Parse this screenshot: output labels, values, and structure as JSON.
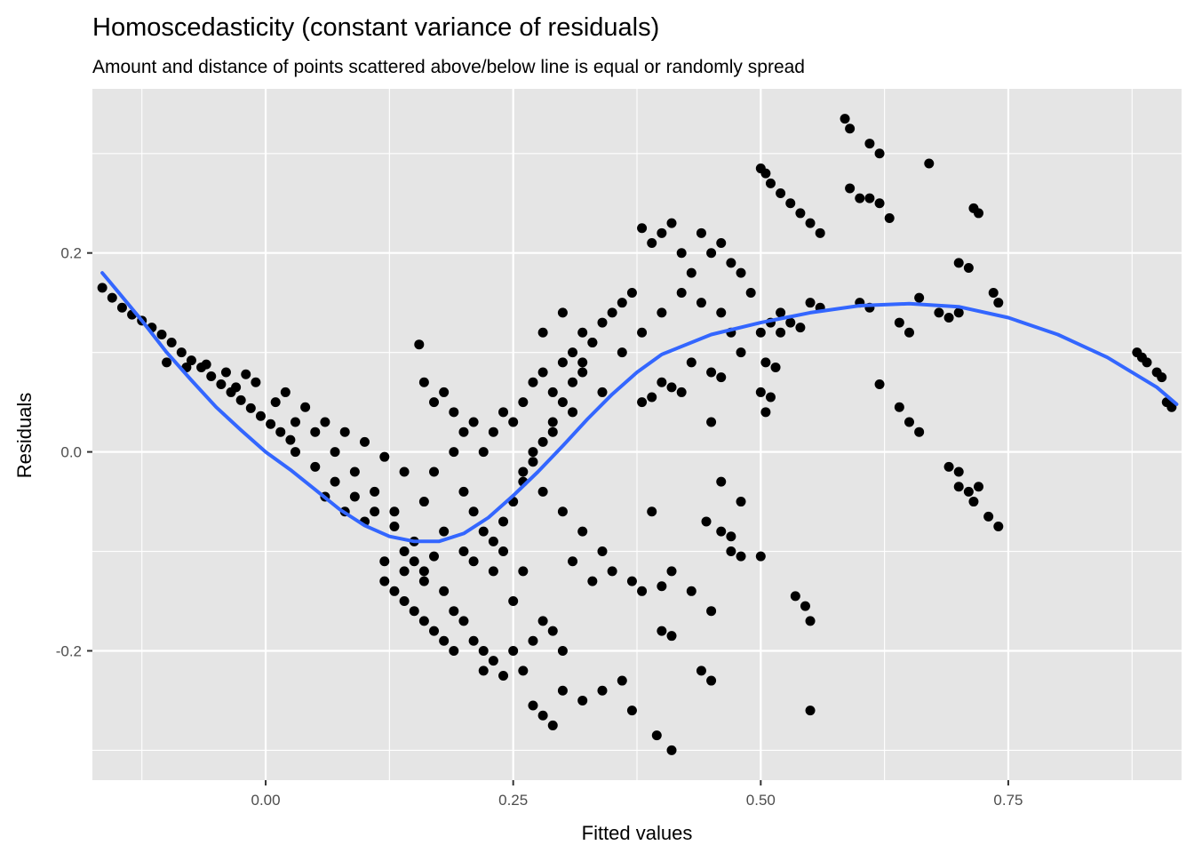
{
  "chart_data": {
    "type": "scatter",
    "title": "Homoscedasticity (constant variance of residuals)",
    "subtitle": "Amount and distance of points scattered above/below line is equal or randomly spread",
    "xlabel": "Fitted values",
    "ylabel": "Residuals",
    "xlim": [
      -0.175,
      0.925
    ],
    "ylim": [
      -0.33,
      0.365
    ],
    "x_ticks": [
      0.0,
      0.25,
      0.5,
      0.75
    ],
    "x_tick_labels": [
      "0.00",
      "0.25",
      "0.50",
      "0.75"
    ],
    "y_ticks": [
      -0.2,
      0.0,
      0.2
    ],
    "y_tick_labels": [
      "-0.2",
      "0.0",
      "0.2"
    ],
    "grid": true,
    "legend": "none",
    "colors": {
      "panel_background": "#e5e5e5",
      "grid_line": "#ffffff",
      "points": "#000000",
      "smooth_line": "#3366ff",
      "tick_text": "#4d4d4d"
    },
    "series": [
      {
        "type": "scatter",
        "points": [
          [
            -0.165,
            0.165
          ],
          [
            -0.155,
            0.155
          ],
          [
            -0.145,
            0.145
          ],
          [
            -0.135,
            0.138
          ],
          [
            -0.125,
            0.132
          ],
          [
            -0.115,
            0.125
          ],
          [
            -0.105,
            0.118
          ],
          [
            -0.095,
            0.11
          ],
          [
            -0.085,
            0.1
          ],
          [
            -0.075,
            0.092
          ],
          [
            -0.065,
            0.085
          ],
          [
            -0.055,
            0.076
          ],
          [
            -0.045,
            0.068
          ],
          [
            -0.035,
            0.06
          ],
          [
            -0.025,
            0.052
          ],
          [
            -0.015,
            0.044
          ],
          [
            -0.005,
            0.036
          ],
          [
            0.005,
            0.028
          ],
          [
            0.015,
            0.02
          ],
          [
            0.025,
            0.012
          ],
          [
            -0.1,
            0.09
          ],
          [
            -0.08,
            0.085
          ],
          [
            -0.06,
            0.088
          ],
          [
            -0.04,
            0.08
          ],
          [
            -0.02,
            0.078
          ],
          [
            -0.01,
            0.07
          ],
          [
            0.02,
            0.06
          ],
          [
            0.04,
            0.045
          ],
          [
            0.06,
            0.03
          ],
          [
            0.08,
            0.02
          ],
          [
            0.1,
            0.01
          ],
          [
            0.12,
            -0.005
          ],
          [
            0.14,
            -0.02
          ],
          [
            0.03,
            0.0
          ],
          [
            0.05,
            -0.015
          ],
          [
            0.07,
            -0.03
          ],
          [
            0.09,
            -0.045
          ],
          [
            0.11,
            -0.06
          ],
          [
            0.13,
            -0.075
          ],
          [
            0.15,
            -0.09
          ],
          [
            0.17,
            -0.105
          ],
          [
            0.12,
            -0.11
          ],
          [
            0.14,
            -0.12
          ],
          [
            0.16,
            -0.13
          ],
          [
            0.18,
            -0.14
          ],
          [
            0.1,
            -0.07
          ],
          [
            0.08,
            -0.06
          ],
          [
            0.06,
            -0.045
          ],
          [
            0.19,
            -0.16
          ],
          [
            0.2,
            -0.17
          ],
          [
            0.21,
            -0.19
          ],
          [
            0.22,
            -0.2
          ],
          [
            0.23,
            -0.21
          ],
          [
            0.22,
            -0.22
          ],
          [
            0.24,
            -0.225
          ],
          [
            0.25,
            -0.2
          ],
          [
            0.26,
            -0.22
          ],
          [
            0.27,
            -0.19
          ],
          [
            0.28,
            -0.17
          ],
          [
            0.29,
            -0.18
          ],
          [
            0.3,
            -0.2
          ],
          [
            0.25,
            -0.15
          ],
          [
            0.23,
            -0.12
          ],
          [
            0.2,
            -0.1
          ],
          [
            0.18,
            -0.08
          ],
          [
            0.16,
            -0.05
          ],
          [
            0.17,
            -0.02
          ],
          [
            0.19,
            0.0
          ],
          [
            0.2,
            -0.04
          ],
          [
            0.21,
            -0.06
          ],
          [
            0.22,
            -0.08
          ],
          [
            0.24,
            -0.1
          ],
          [
            0.26,
            -0.12
          ],
          [
            0.18,
            0.06
          ],
          [
            0.16,
            0.07
          ],
          [
            0.17,
            0.05
          ],
          [
            0.19,
            0.04
          ],
          [
            0.21,
            0.03
          ],
          [
            0.2,
            0.02
          ],
          [
            0.22,
            0.0
          ],
          [
            0.23,
            0.02
          ],
          [
            0.24,
            0.04
          ],
          [
            0.25,
            0.03
          ],
          [
            0.26,
            0.05
          ],
          [
            0.27,
            0.07
          ],
          [
            0.28,
            0.08
          ],
          [
            0.29,
            0.06
          ],
          [
            0.3,
            0.09
          ],
          [
            0.31,
            0.1
          ],
          [
            0.32,
            0.12
          ],
          [
            0.33,
            0.11
          ],
          [
            0.34,
            0.13
          ],
          [
            0.35,
            0.14
          ],
          [
            0.36,
            0.15
          ],
          [
            0.37,
            0.16
          ],
          [
            0.28,
            0.12
          ],
          [
            0.3,
            0.14
          ],
          [
            0.32,
            0.08
          ],
          [
            0.34,
            0.06
          ],
          [
            0.36,
            0.1
          ],
          [
            0.38,
            0.12
          ],
          [
            0.4,
            0.14
          ],
          [
            0.27,
            0.0
          ],
          [
            0.29,
            0.02
          ],
          [
            0.31,
            0.04
          ],
          [
            0.26,
            -0.02
          ],
          [
            0.28,
            -0.04
          ],
          [
            0.3,
            -0.06
          ],
          [
            0.32,
            -0.08
          ],
          [
            0.34,
            -0.1
          ],
          [
            0.35,
            -0.12
          ],
          [
            0.37,
            -0.13
          ],
          [
            0.38,
            -0.14
          ],
          [
            0.31,
            -0.11
          ],
          [
            0.33,
            -0.13
          ],
          [
            0.3,
            -0.24
          ],
          [
            0.32,
            -0.25
          ],
          [
            0.34,
            -0.24
          ],
          [
            0.36,
            -0.23
          ],
          [
            0.37,
            -0.26
          ],
          [
            0.27,
            -0.255
          ],
          [
            0.28,
            -0.265
          ],
          [
            0.29,
            -0.275
          ],
          [
            0.155,
            0.108
          ],
          [
            0.4,
            -0.135
          ],
          [
            0.41,
            -0.12
          ],
          [
            0.39,
            -0.06
          ],
          [
            0.4,
            -0.18
          ],
          [
            0.41,
            -0.185
          ],
          [
            0.395,
            -0.285
          ],
          [
            0.41,
            -0.3
          ],
          [
            0.44,
            -0.22
          ],
          [
            0.45,
            -0.23
          ],
          [
            0.45,
            -0.16
          ],
          [
            0.43,
            -0.14
          ],
          [
            0.38,
            0.225
          ],
          [
            0.39,
            0.21
          ],
          [
            0.4,
            0.22
          ],
          [
            0.41,
            0.23
          ],
          [
            0.42,
            0.2
          ],
          [
            0.43,
            0.18
          ],
          [
            0.44,
            0.22
          ],
          [
            0.45,
            0.2
          ],
          [
            0.46,
            0.21
          ],
          [
            0.47,
            0.19
          ],
          [
            0.48,
            0.18
          ],
          [
            0.49,
            0.16
          ],
          [
            0.42,
            0.16
          ],
          [
            0.44,
            0.15
          ],
          [
            0.46,
            0.14
          ],
          [
            0.47,
            0.12
          ],
          [
            0.48,
            0.1
          ],
          [
            0.43,
            0.09
          ],
          [
            0.45,
            0.08
          ],
          [
            0.46,
            0.075
          ],
          [
            0.4,
            0.07
          ],
          [
            0.41,
            0.065
          ],
          [
            0.42,
            0.06
          ],
          [
            0.38,
            0.05
          ],
          [
            0.39,
            0.055
          ],
          [
            0.445,
            -0.07
          ],
          [
            0.46,
            -0.08
          ],
          [
            0.47,
            -0.085
          ],
          [
            0.47,
            -0.1
          ],
          [
            0.48,
            -0.105
          ],
          [
            0.5,
            -0.105
          ],
          [
            0.46,
            -0.03
          ],
          [
            0.48,
            -0.05
          ],
          [
            0.45,
            0.03
          ],
          [
            0.5,
            0.285
          ],
          [
            0.505,
            0.28
          ],
          [
            0.51,
            0.27
          ],
          [
            0.52,
            0.26
          ],
          [
            0.53,
            0.25
          ],
          [
            0.54,
            0.24
          ],
          [
            0.55,
            0.23
          ],
          [
            0.56,
            0.22
          ],
          [
            0.52,
            0.14
          ],
          [
            0.53,
            0.13
          ],
          [
            0.54,
            0.125
          ],
          [
            0.5,
            0.12
          ],
          [
            0.51,
            0.13
          ],
          [
            0.52,
            0.12
          ],
          [
            0.55,
            0.15
          ],
          [
            0.56,
            0.145
          ],
          [
            0.505,
            0.09
          ],
          [
            0.515,
            0.085
          ],
          [
            0.5,
            0.06
          ],
          [
            0.51,
            0.055
          ],
          [
            0.505,
            0.04
          ],
          [
            0.535,
            -0.145
          ],
          [
            0.545,
            -0.155
          ],
          [
            0.55,
            -0.17
          ],
          [
            0.55,
            -0.26
          ],
          [
            0.585,
            0.335
          ],
          [
            0.59,
            0.325
          ],
          [
            0.61,
            0.31
          ],
          [
            0.62,
            0.3
          ],
          [
            0.59,
            0.265
          ],
          [
            0.6,
            0.255
          ],
          [
            0.61,
            0.255
          ],
          [
            0.62,
            0.25
          ],
          [
            0.63,
            0.235
          ],
          [
            0.6,
            0.15
          ],
          [
            0.61,
            0.145
          ],
          [
            0.64,
            0.13
          ],
          [
            0.65,
            0.12
          ],
          [
            0.66,
            0.155
          ],
          [
            0.67,
            0.29
          ],
          [
            0.62,
            0.068
          ],
          [
            0.64,
            0.045
          ],
          [
            0.65,
            0.03
          ],
          [
            0.66,
            0.02
          ],
          [
            0.68,
            0.14
          ],
          [
            0.69,
            0.135
          ],
          [
            0.7,
            0.14
          ],
          [
            0.7,
            0.19
          ],
          [
            0.71,
            0.185
          ],
          [
            0.715,
            0.245
          ],
          [
            0.72,
            0.24
          ],
          [
            0.735,
            0.16
          ],
          [
            0.74,
            0.15
          ],
          [
            0.69,
            -0.015
          ],
          [
            0.7,
            -0.02
          ],
          [
            0.7,
            -0.035
          ],
          [
            0.71,
            -0.04
          ],
          [
            0.715,
            -0.05
          ],
          [
            0.72,
            -0.035
          ],
          [
            0.73,
            -0.065
          ],
          [
            0.74,
            -0.075
          ],
          [
            0.88,
            0.1
          ],
          [
            0.885,
            0.095
          ],
          [
            0.89,
            0.09
          ],
          [
            0.9,
            0.08
          ],
          [
            0.905,
            0.075
          ],
          [
            0.91,
            0.05
          ],
          [
            0.915,
            0.045
          ],
          [
            0.21,
            -0.11
          ],
          [
            0.23,
            -0.09
          ],
          [
            0.24,
            -0.07
          ],
          [
            0.25,
            -0.05
          ],
          [
            0.26,
            -0.03
          ],
          [
            0.27,
            -0.01
          ],
          [
            0.28,
            0.01
          ],
          [
            0.29,
            0.03
          ],
          [
            0.3,
            0.05
          ],
          [
            0.31,
            0.07
          ],
          [
            0.32,
            0.09
          ],
          [
            0.33,
            0.11
          ],
          [
            0.14,
            -0.1
          ],
          [
            0.15,
            -0.11
          ],
          [
            0.16,
            -0.12
          ],
          [
            0.13,
            -0.06
          ],
          [
            0.11,
            -0.04
          ],
          [
            0.09,
            -0.02
          ],
          [
            0.07,
            0.0
          ],
          [
            0.05,
            0.02
          ],
          [
            0.03,
            0.03
          ],
          [
            0.01,
            0.05
          ],
          [
            -0.03,
            0.065
          ],
          [
            0.12,
            -0.13
          ],
          [
            0.13,
            -0.14
          ],
          [
            0.14,
            -0.15
          ],
          [
            0.15,
            -0.16
          ],
          [
            0.16,
            -0.17
          ],
          [
            0.17,
            -0.18
          ],
          [
            0.18,
            -0.19
          ],
          [
            0.19,
            -0.2
          ]
        ]
      },
      {
        "type": "line",
        "points": [
          [
            -0.165,
            0.18
          ],
          [
            -0.15,
            0.162
          ],
          [
            -0.125,
            0.132
          ],
          [
            -0.1,
            0.1
          ],
          [
            -0.075,
            0.072
          ],
          [
            -0.05,
            0.045
          ],
          [
            -0.025,
            0.022
          ],
          [
            0.0,
            0.0
          ],
          [
            0.025,
            -0.018
          ],
          [
            0.05,
            -0.038
          ],
          [
            0.075,
            -0.058
          ],
          [
            0.1,
            -0.074
          ],
          [
            0.125,
            -0.085
          ],
          [
            0.15,
            -0.09
          ],
          [
            0.175,
            -0.09
          ],
          [
            0.2,
            -0.082
          ],
          [
            0.225,
            -0.066
          ],
          [
            0.25,
            -0.044
          ],
          [
            0.275,
            -0.02
          ],
          [
            0.3,
            0.006
          ],
          [
            0.325,
            0.033
          ],
          [
            0.35,
            0.058
          ],
          [
            0.375,
            0.08
          ],
          [
            0.4,
            0.098
          ],
          [
            0.45,
            0.118
          ],
          [
            0.5,
            0.13
          ],
          [
            0.55,
            0.14
          ],
          [
            0.6,
            0.147
          ],
          [
            0.65,
            0.149
          ],
          [
            0.7,
            0.146
          ],
          [
            0.75,
            0.135
          ],
          [
            0.8,
            0.118
          ],
          [
            0.85,
            0.095
          ],
          [
            0.9,
            0.065
          ],
          [
            0.92,
            0.048
          ]
        ]
      }
    ]
  }
}
